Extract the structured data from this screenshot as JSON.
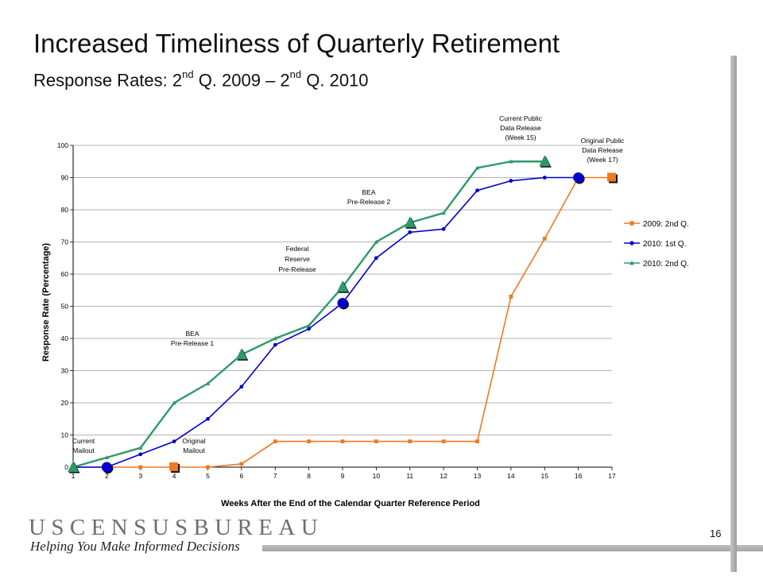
{
  "slide": {
    "title": "Increased Timeliness of Quarterly Retirement",
    "subtitle_part1": "Response Rates: 2",
    "subtitle_sup1": "nd",
    "subtitle_part2": " Q. 2009 – 2",
    "subtitle_sup2": "nd",
    "subtitle_part3": " Q. 2010",
    "page_number": "16"
  },
  "footer": {
    "bureau_name": "USCENSUSBUREAU",
    "tagline": "Helping You Make Informed Decisions"
  },
  "chart_data": {
    "type": "line",
    "title": "",
    "xlabel": "Weeks After the End of the Calendar Quarter Reference Period",
    "ylabel": "Response Rate (Percentage)",
    "x": [
      1,
      2,
      3,
      4,
      5,
      6,
      7,
      8,
      9,
      10,
      11,
      12,
      13,
      14,
      15,
      16,
      17
    ],
    "xlim": [
      1,
      17
    ],
    "ylim": [
      0,
      100
    ],
    "yticks": [
      0,
      10,
      20,
      30,
      40,
      50,
      60,
      70,
      80,
      90,
      100
    ],
    "grid": true,
    "legend_position": "right",
    "series": [
      {
        "name": "2009: 2nd Q.",
        "color": "#f07820",
        "marker": "square",
        "x": [
          1,
          2,
          3,
          4,
          5,
          6,
          7,
          8,
          9,
          10,
          11,
          12,
          13,
          14,
          15,
          16,
          17
        ],
        "values": [
          0,
          0,
          0,
          0,
          0,
          1,
          8,
          8,
          8,
          8,
          8,
          8,
          8,
          53,
          71,
          90,
          90
        ],
        "highlights": [
          {
            "x": 4,
            "y": 0
          },
          {
            "x": 17,
            "y": 90
          }
        ]
      },
      {
        "name": "2010: 1st Q.",
        "color": "#0000cc",
        "marker": "circle",
        "x": [
          1,
          2,
          3,
          4,
          5,
          6,
          7,
          8,
          9,
          10,
          11,
          12,
          13,
          14,
          15,
          16
        ],
        "values": [
          0,
          0,
          4,
          8,
          15,
          25,
          38,
          43,
          51,
          65,
          73,
          74,
          86,
          89,
          90,
          90
        ],
        "highlights": [
          {
            "x": 2,
            "y": 0
          },
          {
            "x": 9,
            "y": 51
          },
          {
            "x": 16,
            "y": 90
          }
        ]
      },
      {
        "name": "2010: 2nd Q.",
        "color": "#2e9a6a",
        "marker": "triangle",
        "x": [
          1,
          2,
          3,
          4,
          5,
          6,
          7,
          8,
          9,
          10,
          11,
          12,
          13,
          14,
          15
        ],
        "values": [
          0,
          3,
          6,
          20,
          26,
          35,
          40,
          44,
          56,
          70,
          76,
          79,
          93,
          95,
          95
        ],
        "highlights": [
          {
            "x": 1,
            "y": 0
          },
          {
            "x": 6,
            "y": 35
          },
          {
            "x": 9,
            "y": 56
          },
          {
            "x": 11,
            "y": 76
          },
          {
            "x": 15,
            "y": 95
          }
        ]
      }
    ],
    "annotations": [
      {
        "lines": [
          "Current",
          "Mailout"
        ]
      },
      {
        "lines": [
          "Original",
          "Mailout"
        ]
      },
      {
        "lines": [
          "BEA",
          "Pre-Release 1"
        ]
      },
      {
        "lines": [
          "Federal",
          "Reserve",
          "Pre-Release"
        ]
      },
      {
        "lines": [
          "BEA",
          "Pre-Release 2"
        ]
      },
      {
        "lines": [
          "Current Public",
          "Data Release",
          "(Week 15)"
        ]
      },
      {
        "lines": [
          "Original Public",
          "Data Release",
          "(Week 17)"
        ]
      }
    ]
  }
}
